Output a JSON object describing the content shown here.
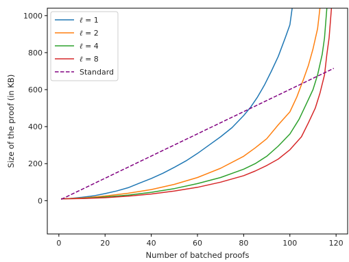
{
  "chart_data": {
    "type": "line",
    "title": "",
    "xlabel": "Number of batched proofs",
    "ylabel": "Size of the proof (in KB)",
    "xlim": [
      -5,
      125
    ],
    "ylim": [
      -180,
      1040
    ],
    "xticks": [
      0,
      20,
      40,
      60,
      80,
      100,
      120
    ],
    "yticks": [
      0,
      200,
      400,
      600,
      800,
      1000
    ],
    "grid": false,
    "legend_position": "top-left",
    "series": [
      {
        "name": "ℓ = 1",
        "legend_var": "ℓ",
        "legend_value": "= 1",
        "color": "#1f77b4",
        "style": "solid",
        "points": [
          [
            1,
            10
          ],
          [
            5,
            12
          ],
          [
            10,
            18
          ],
          [
            15,
            26
          ],
          [
            20,
            38
          ],
          [
            25,
            52
          ],
          [
            30,
            70
          ],
          [
            35,
            95
          ],
          [
            40,
            120
          ],
          [
            45,
            148
          ],
          [
            50,
            180
          ],
          [
            55,
            215
          ],
          [
            60,
            255
          ],
          [
            65,
            300
          ],
          [
            70,
            345
          ],
          [
            75,
            395
          ],
          [
            80,
            460
          ],
          [
            83,
            505
          ],
          [
            86,
            560
          ],
          [
            89,
            625
          ],
          [
            92,
            700
          ],
          [
            95,
            780
          ],
          [
            98,
            880
          ],
          [
            100,
            950
          ],
          [
            101,
            1040
          ]
        ]
      },
      {
        "name": "ℓ = 2",
        "legend_var": "ℓ",
        "legend_value": "= 2",
        "color": "#ff7f0e",
        "style": "solid",
        "points": [
          [
            1,
            10
          ],
          [
            10,
            14
          ],
          [
            20,
            25
          ],
          [
            30,
            40
          ],
          [
            40,
            60
          ],
          [
            50,
            88
          ],
          [
            60,
            125
          ],
          [
            70,
            175
          ],
          [
            80,
            240
          ],
          [
            85,
            285
          ],
          [
            90,
            335
          ],
          [
            95,
            410
          ],
          [
            100,
            480
          ],
          [
            103,
            560
          ],
          [
            106,
            660
          ],
          [
            108,
            730
          ],
          [
            110,
            820
          ],
          [
            112,
            930
          ],
          [
            113,
            1040
          ]
        ]
      },
      {
        "name": "ℓ = 4",
        "legend_var": "ℓ",
        "legend_value": "= 4",
        "color": "#2ca02c",
        "style": "solid",
        "points": [
          [
            1,
            10
          ],
          [
            10,
            12
          ],
          [
            20,
            20
          ],
          [
            30,
            30
          ],
          [
            40,
            45
          ],
          [
            50,
            65
          ],
          [
            60,
            92
          ],
          [
            70,
            125
          ],
          [
            80,
            170
          ],
          [
            85,
            200
          ],
          [
            90,
            240
          ],
          [
            95,
            295
          ],
          [
            100,
            360
          ],
          [
            104,
            440
          ],
          [
            107,
            520
          ],
          [
            110,
            600
          ],
          [
            112,
            680
          ],
          [
            114,
            790
          ],
          [
            115,
            880
          ],
          [
            116,
            1040
          ]
        ]
      },
      {
        "name": "ℓ = 8",
        "legend_var": "ℓ",
        "legend_value": "= 8",
        "color": "#d62728",
        "style": "solid",
        "points": [
          [
            1,
            10
          ],
          [
            10,
            11
          ],
          [
            20,
            16
          ],
          [
            30,
            24
          ],
          [
            40,
            36
          ],
          [
            50,
            52
          ],
          [
            60,
            72
          ],
          [
            70,
            100
          ],
          [
            80,
            135
          ],
          [
            85,
            160
          ],
          [
            90,
            190
          ],
          [
            95,
            225
          ],
          [
            100,
            275
          ],
          [
            105,
            345
          ],
          [
            108,
            420
          ],
          [
            111,
            500
          ],
          [
            113,
            580
          ],
          [
            115,
            680
          ],
          [
            116,
            790
          ],
          [
            117,
            880
          ],
          [
            118,
            1040
          ]
        ]
      },
      {
        "name": "Standard",
        "color": "#800080",
        "style": "dashed",
        "points": [
          [
            1,
            7
          ],
          [
            119,
            715
          ]
        ]
      }
    ]
  }
}
